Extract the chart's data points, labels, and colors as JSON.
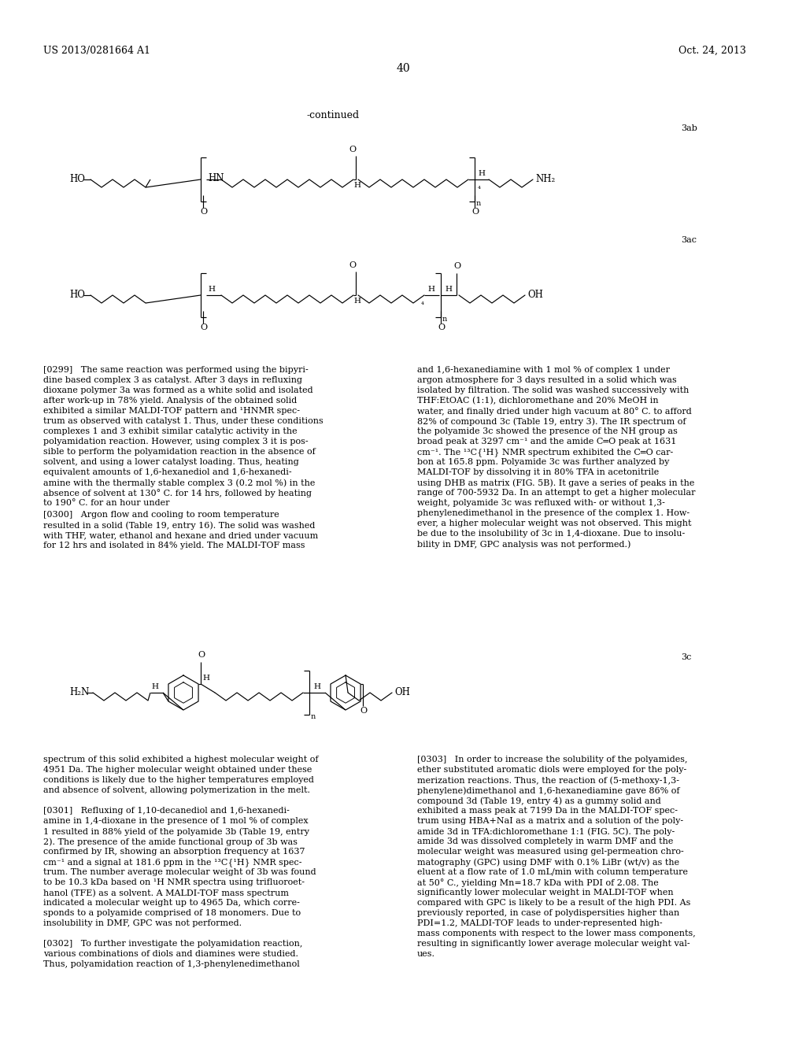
{
  "bg": "#ffffff",
  "header_left": "US 2013/0281664 A1",
  "header_right": "Oct. 24, 2013",
  "page_num": "40",
  "continued": "-continued",
  "lbl_3ab": "3ab",
  "lbl_3ac": "3ac",
  "lbl_3c": "3c",
  "col1_top": [
    "[0299]   The same reaction was performed using the bipyri-",
    "dine based complex 3 as catalyst. After 3 days in refluxing",
    "dioxane polymer 3a was formed as a white solid and isolated",
    "after work-up in 78% yield. Analysis of the obtained solid",
    "exhibited a similar MALDI-TOF pattern and ¹HNMR spec-",
    "trum as observed with catalyst 1. Thus, under these conditions",
    "complexes 1 and 3 exhibit similar catalytic activity in the",
    "polyamidation reaction. However, using complex 3 it is pos-",
    "sible to perform the polyamidation reaction in the absence of",
    "solvent, and using a lower catalyst loading. Thus, heating",
    "equivalent amounts of 1,6-hexanediol and 1,6-hexanedi-",
    "amine with the thermally stable complex 3 (0.2 mol %) in the",
    "absence of solvent at 130° C. for 14 hrs, followed by heating",
    "to 190° C. for an hour under",
    "[0300]   Argon flow and cooling to room temperature",
    "resulted in a solid (Table 19, entry 16). The solid was washed",
    "with THF, water, ethanol and hexane and dried under vacuum",
    "for 12 hrs and isolated in 84% yield. The MALDI-TOF mass"
  ],
  "col2_top": [
    "and 1,6-hexanediamine with 1 mol % of complex 1 under",
    "argon atmosphere for 3 days resulted in a solid which was",
    "isolated by filtration. The solid was washed successively with",
    "THF:EtOAC (1:1), dichloromethane and 20% MeOH in",
    "water, and finally dried under high vacuum at 80° C. to afford",
    "82% of compound 3c (Table 19, entry 3). The IR spectrum of",
    "the polyamide 3c showed the presence of the NH group as",
    "broad peak at 3297 cm⁻¹ and the amide C═O peak at 1631",
    "cm⁻¹. The ¹³C{¹H} NMR spectrum exhibited the C═O car-",
    "bon at 165.8 ppm. Polyamide 3c was further analyzed by",
    "MALDI-TOF by dissolving it in 80% TFA in acetonitrile",
    "using DHB as matrix (FIG. 5B). It gave a series of peaks in the",
    "range of 700-5932 Da. In an attempt to get a higher molecular",
    "weight, polyamide 3c was refluxed with- or without 1,3-",
    "phenylenedimethanol in the presence of the complex 1. How-",
    "ever, a higher molecular weight was not observed. This might",
    "be due to the insolubility of 3c in 1,4-dioxane. Due to insolu-",
    "bility in DMF, GPC analysis was not performed.)"
  ],
  "col1_bot": [
    "spectrum of this solid exhibited a highest molecular weight of",
    "4951 Da. The higher molecular weight obtained under these",
    "conditions is likely due to the higher temperatures employed",
    "and absence of solvent, allowing polymerization in the melt.",
    "",
    "[0301]   Refluxing of 1,10-decanediol and 1,6-hexanedi-",
    "amine in 1,4-dioxane in the presence of 1 mol % of complex",
    "1 resulted in 88% yield of the polyamide 3b (Table 19, entry",
    "2). The presence of the amide functional group of 3b was",
    "confirmed by IR, showing an absorption frequency at 1637",
    "cm⁻¹ and a signal at 181.6 ppm in the ¹³C{¹H} NMR spec-",
    "trum. The number average molecular weight of 3b was found",
    "to be 10.3 kDa based on ¹H NMR spectra using trifluoroet-",
    "hanol (TFE) as a solvent. A MALDI-TOF mass spectrum",
    "indicated a molecular weight up to 4965 Da, which corre-",
    "sponds to a polyamide comprised of 18 monomers. Due to",
    "insolubility in DMF, GPC was not performed.",
    "",
    "[0302]   To further investigate the polyamidation reaction,",
    "various combinations of diols and diamines were studied.",
    "Thus, polyamidation reaction of 1,3-phenylenedimethanol"
  ],
  "col2_bot": [
    "[0303]   In order to increase the solubility of the polyamides,",
    "ether substituted aromatic diols were employed for the poly-",
    "merization reactions. Thus, the reaction of (5-methoxy-1,3-",
    "phenylene)dimethanol and 1,6-hexanediamine gave 86% of",
    "compound 3d (Table 19, entry 4) as a gummy solid and",
    "exhibited a mass peak at 7199 Da in the MALDI-TOF spec-",
    "trum using HBA+NaI as a matrix and a solution of the poly-",
    "amide 3d in TFA:dichloromethane 1:1 (FIG. 5C). The poly-",
    "amide 3d was dissolved completely in warm DMF and the",
    "molecular weight was measured using gel-permeation chro-",
    "matography (GPC) using DMF with 0.1% LiBr (wt/v) as the",
    "eluent at a flow rate of 1.0 mL/min with column temperature",
    "at 50° C., yielding Mn=18.7 kDa with PDI of 2.08. The",
    "significantly lower molecular weight in MALDI-TOF when",
    "compared with GPC is likely to be a result of the high PDI. As",
    "previously reported, in case of polydispersities higher than",
    "PDI=1.2, MALDI-TOF leads to under-represented high-",
    "mass components with respect to the lower mass components,",
    "resulting in significantly lower average molecular weight val-",
    "ues."
  ]
}
